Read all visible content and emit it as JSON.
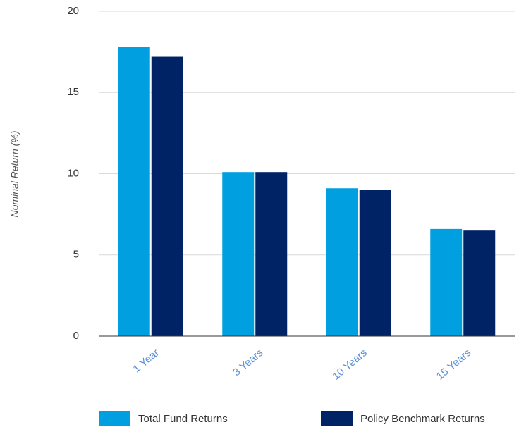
{
  "chart_data": {
    "type": "bar",
    "y_axis_label": "Nominal Return (%)",
    "categories": [
      "1 Year",
      "3 Years",
      "10 Years",
      "15 Years"
    ],
    "series": [
      {
        "name": "Total Fund Returns",
        "color": "#00a0e0",
        "values": [
          17.8,
          10.1,
          9.1,
          6.6
        ]
      },
      {
        "name": "Policy Benchmark Returns",
        "color": "#002366",
        "values": [
          17.2,
          10.1,
          9.0,
          6.5
        ]
      }
    ],
    "ylim": [
      0,
      20
    ],
    "yticks": [
      0,
      5,
      10,
      15,
      20
    ],
    "grid": true,
    "legend": "bottom"
  }
}
